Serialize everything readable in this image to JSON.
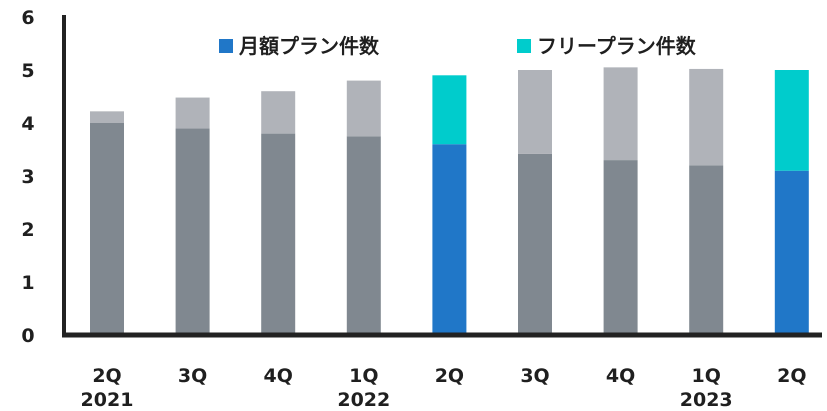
{
  "chart_data": {
    "type": "bar",
    "stacked": true,
    "categories": [
      {
        "label": "2Q",
        "year": "2021"
      },
      {
        "label": "3Q",
        "year": ""
      },
      {
        "label": "4Q",
        "year": ""
      },
      {
        "label": "1Q",
        "year": "2022"
      },
      {
        "label": "2Q",
        "year": ""
      },
      {
        "label": "3Q",
        "year": ""
      },
      {
        "label": "4Q",
        "year": ""
      },
      {
        "label": "1Q",
        "year": "2023"
      },
      {
        "label": "2Q",
        "year": ""
      }
    ],
    "series": [
      {
        "name": "月額プラン件数",
        "values": [
          4.0,
          3.9,
          3.8,
          3.75,
          3.6,
          3.42,
          3.3,
          3.2,
          3.1
        ]
      },
      {
        "name": "フリープラン件数",
        "values": [
          0.22,
          0.58,
          0.8,
          1.05,
          1.3,
          1.58,
          1.75,
          1.82,
          1.9
        ]
      }
    ],
    "highlighted_categories": [
      4,
      8
    ],
    "colors": {
      "base_bottom": "#808890",
      "base_top": "#b0b3b9",
      "highlight_bottom": "#2077c8",
      "highlight_top": "#00cccc",
      "axis": "#222222"
    },
    "ylim": [
      0,
      6
    ],
    "yticks": [
      "0",
      "1",
      "2",
      "3",
      "4",
      "5",
      "6"
    ],
    "legend_position": "top",
    "grid": false
  }
}
